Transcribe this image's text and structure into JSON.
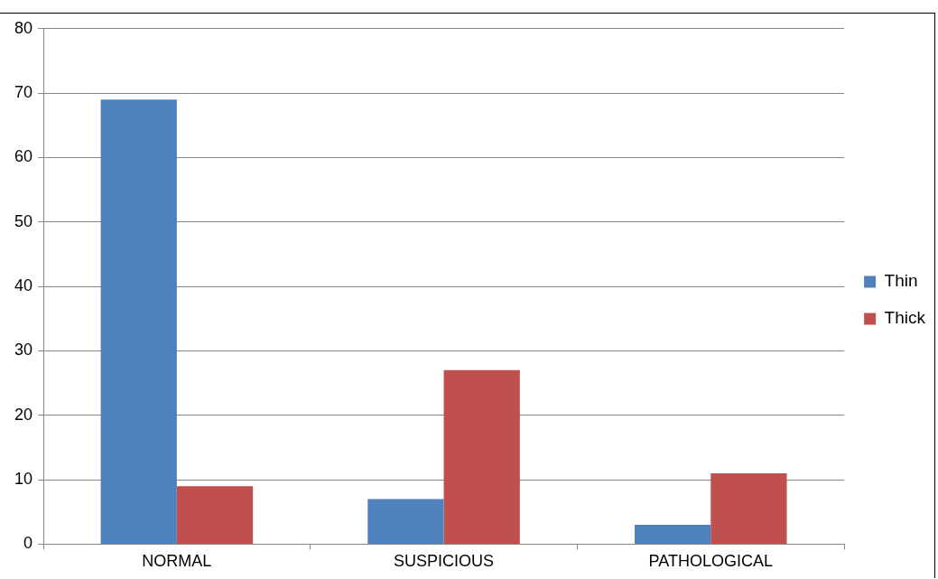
{
  "chart_data": {
    "type": "bar",
    "categories": [
      "NORMAL",
      "SUSPICIOUS",
      "PATHOLOGICAL"
    ],
    "series": [
      {
        "name": "Thin",
        "color": "#4f81bd",
        "values": [
          69,
          7,
          3
        ]
      },
      {
        "name": "Thick",
        "color": "#c0504d",
        "values": [
          9,
          27,
          11
        ]
      }
    ],
    "ylim": [
      0,
      80
    ],
    "yticks": [
      0,
      10,
      20,
      30,
      40,
      50,
      60,
      70,
      80
    ],
    "grid": "y",
    "legend": "right"
  }
}
